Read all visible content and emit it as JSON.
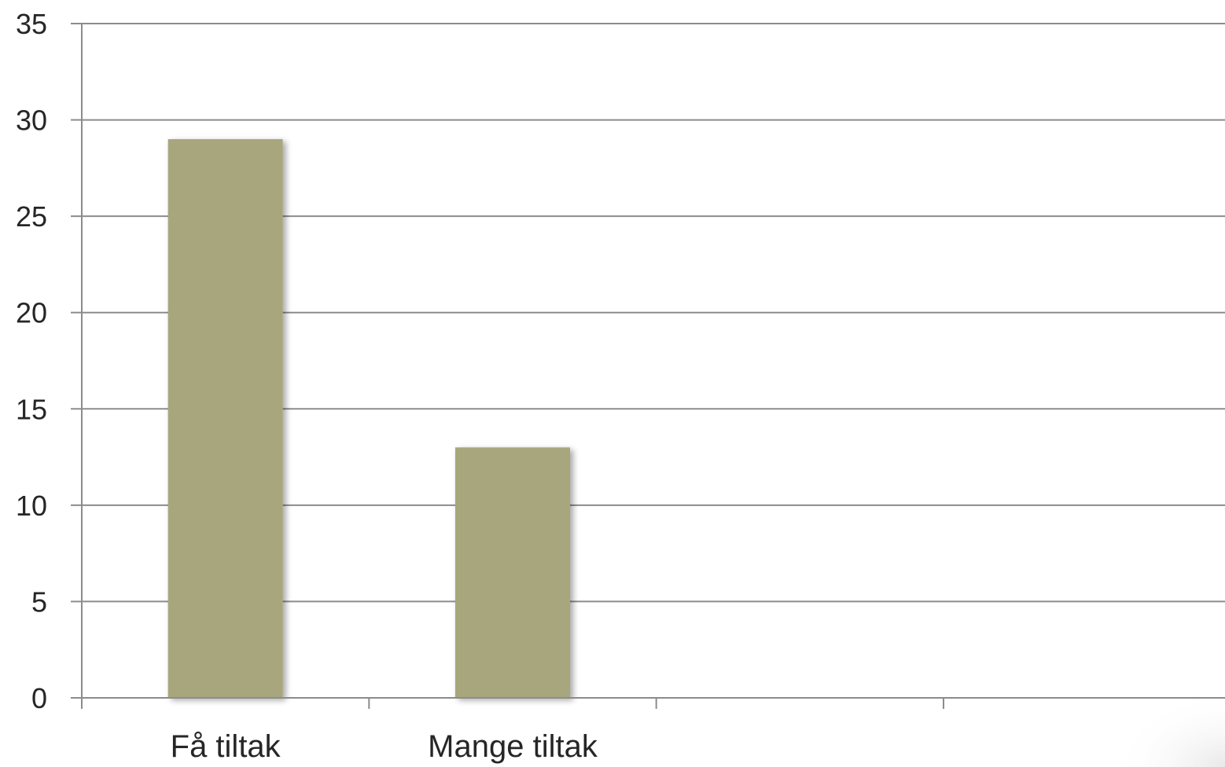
{
  "chart_data": {
    "type": "bar",
    "title": "",
    "xlabel": "",
    "ylabel": "",
    "categories": [
      "Få tiltak",
      "Mange tiltak",
      "",
      ""
    ],
    "values": [
      29,
      13,
      null,
      null
    ],
    "ylim": [
      0,
      35
    ],
    "yticks": [
      0,
      5,
      10,
      15,
      20,
      25,
      30,
      35
    ],
    "grid": true,
    "legend": "none",
    "colors": {
      "bar": "#a8a67d",
      "grid": "#8c8c8c",
      "text": "#262626",
      "background": "#ffffff"
    }
  }
}
